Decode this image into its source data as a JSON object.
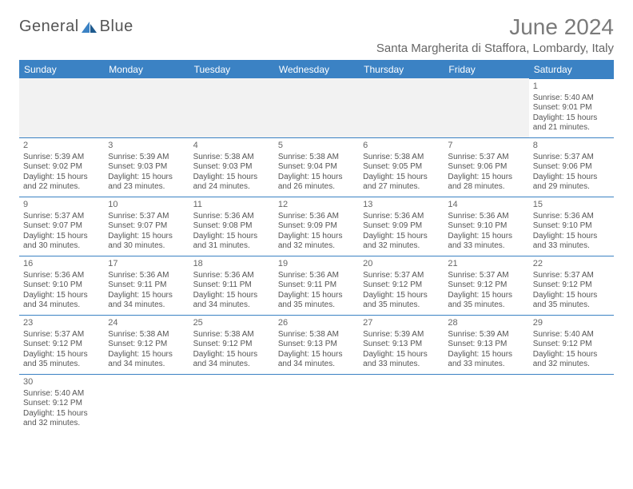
{
  "logo": {
    "word1": "General",
    "word2": "Blue"
  },
  "title": "June 2024",
  "location": "Santa Margherita di Staffora, Lombardy, Italy",
  "colors": {
    "header_bg": "#3b82c4",
    "header_text": "#ffffff",
    "border": "#3b82c4",
    "empty_bg": "#f2f2f2",
    "body_text": "#555555",
    "title_text": "#7a7a7a"
  },
  "day_headers": [
    "Sunday",
    "Monday",
    "Tuesday",
    "Wednesday",
    "Thursday",
    "Friday",
    "Saturday"
  ],
  "weeks": [
    [
      {
        "blank": true
      },
      {
        "blank": true
      },
      {
        "blank": true
      },
      {
        "blank": true
      },
      {
        "blank": true
      },
      {
        "blank": true
      },
      {
        "day": "1",
        "sunrise": "Sunrise: 5:40 AM",
        "sunset": "Sunset: 9:01 PM",
        "daylight1": "Daylight: 15 hours",
        "daylight2": "and 21 minutes."
      }
    ],
    [
      {
        "day": "2",
        "sunrise": "Sunrise: 5:39 AM",
        "sunset": "Sunset: 9:02 PM",
        "daylight1": "Daylight: 15 hours",
        "daylight2": "and 22 minutes."
      },
      {
        "day": "3",
        "sunrise": "Sunrise: 5:39 AM",
        "sunset": "Sunset: 9:03 PM",
        "daylight1": "Daylight: 15 hours",
        "daylight2": "and 23 minutes."
      },
      {
        "day": "4",
        "sunrise": "Sunrise: 5:38 AM",
        "sunset": "Sunset: 9:03 PM",
        "daylight1": "Daylight: 15 hours",
        "daylight2": "and 24 minutes."
      },
      {
        "day": "5",
        "sunrise": "Sunrise: 5:38 AM",
        "sunset": "Sunset: 9:04 PM",
        "daylight1": "Daylight: 15 hours",
        "daylight2": "and 26 minutes."
      },
      {
        "day": "6",
        "sunrise": "Sunrise: 5:38 AM",
        "sunset": "Sunset: 9:05 PM",
        "daylight1": "Daylight: 15 hours",
        "daylight2": "and 27 minutes."
      },
      {
        "day": "7",
        "sunrise": "Sunrise: 5:37 AM",
        "sunset": "Sunset: 9:06 PM",
        "daylight1": "Daylight: 15 hours",
        "daylight2": "and 28 minutes."
      },
      {
        "day": "8",
        "sunrise": "Sunrise: 5:37 AM",
        "sunset": "Sunset: 9:06 PM",
        "daylight1": "Daylight: 15 hours",
        "daylight2": "and 29 minutes."
      }
    ],
    [
      {
        "day": "9",
        "sunrise": "Sunrise: 5:37 AM",
        "sunset": "Sunset: 9:07 PM",
        "daylight1": "Daylight: 15 hours",
        "daylight2": "and 30 minutes."
      },
      {
        "day": "10",
        "sunrise": "Sunrise: 5:37 AM",
        "sunset": "Sunset: 9:07 PM",
        "daylight1": "Daylight: 15 hours",
        "daylight2": "and 30 minutes."
      },
      {
        "day": "11",
        "sunrise": "Sunrise: 5:36 AM",
        "sunset": "Sunset: 9:08 PM",
        "daylight1": "Daylight: 15 hours",
        "daylight2": "and 31 minutes."
      },
      {
        "day": "12",
        "sunrise": "Sunrise: 5:36 AM",
        "sunset": "Sunset: 9:09 PM",
        "daylight1": "Daylight: 15 hours",
        "daylight2": "and 32 minutes."
      },
      {
        "day": "13",
        "sunrise": "Sunrise: 5:36 AM",
        "sunset": "Sunset: 9:09 PM",
        "daylight1": "Daylight: 15 hours",
        "daylight2": "and 32 minutes."
      },
      {
        "day": "14",
        "sunrise": "Sunrise: 5:36 AM",
        "sunset": "Sunset: 9:10 PM",
        "daylight1": "Daylight: 15 hours",
        "daylight2": "and 33 minutes."
      },
      {
        "day": "15",
        "sunrise": "Sunrise: 5:36 AM",
        "sunset": "Sunset: 9:10 PM",
        "daylight1": "Daylight: 15 hours",
        "daylight2": "and 33 minutes."
      }
    ],
    [
      {
        "day": "16",
        "sunrise": "Sunrise: 5:36 AM",
        "sunset": "Sunset: 9:10 PM",
        "daylight1": "Daylight: 15 hours",
        "daylight2": "and 34 minutes."
      },
      {
        "day": "17",
        "sunrise": "Sunrise: 5:36 AM",
        "sunset": "Sunset: 9:11 PM",
        "daylight1": "Daylight: 15 hours",
        "daylight2": "and 34 minutes."
      },
      {
        "day": "18",
        "sunrise": "Sunrise: 5:36 AM",
        "sunset": "Sunset: 9:11 PM",
        "daylight1": "Daylight: 15 hours",
        "daylight2": "and 34 minutes."
      },
      {
        "day": "19",
        "sunrise": "Sunrise: 5:36 AM",
        "sunset": "Sunset: 9:11 PM",
        "daylight1": "Daylight: 15 hours",
        "daylight2": "and 35 minutes."
      },
      {
        "day": "20",
        "sunrise": "Sunrise: 5:37 AM",
        "sunset": "Sunset: 9:12 PM",
        "daylight1": "Daylight: 15 hours",
        "daylight2": "and 35 minutes."
      },
      {
        "day": "21",
        "sunrise": "Sunrise: 5:37 AM",
        "sunset": "Sunset: 9:12 PM",
        "daylight1": "Daylight: 15 hours",
        "daylight2": "and 35 minutes."
      },
      {
        "day": "22",
        "sunrise": "Sunrise: 5:37 AM",
        "sunset": "Sunset: 9:12 PM",
        "daylight1": "Daylight: 15 hours",
        "daylight2": "and 35 minutes."
      }
    ],
    [
      {
        "day": "23",
        "sunrise": "Sunrise: 5:37 AM",
        "sunset": "Sunset: 9:12 PM",
        "daylight1": "Daylight: 15 hours",
        "daylight2": "and 35 minutes."
      },
      {
        "day": "24",
        "sunrise": "Sunrise: 5:38 AM",
        "sunset": "Sunset: 9:12 PM",
        "daylight1": "Daylight: 15 hours",
        "daylight2": "and 34 minutes."
      },
      {
        "day": "25",
        "sunrise": "Sunrise: 5:38 AM",
        "sunset": "Sunset: 9:12 PM",
        "daylight1": "Daylight: 15 hours",
        "daylight2": "and 34 minutes."
      },
      {
        "day": "26",
        "sunrise": "Sunrise: 5:38 AM",
        "sunset": "Sunset: 9:13 PM",
        "daylight1": "Daylight: 15 hours",
        "daylight2": "and 34 minutes."
      },
      {
        "day": "27",
        "sunrise": "Sunrise: 5:39 AM",
        "sunset": "Sunset: 9:13 PM",
        "daylight1": "Daylight: 15 hours",
        "daylight2": "and 33 minutes."
      },
      {
        "day": "28",
        "sunrise": "Sunrise: 5:39 AM",
        "sunset": "Sunset: 9:13 PM",
        "daylight1": "Daylight: 15 hours",
        "daylight2": "and 33 minutes."
      },
      {
        "day": "29",
        "sunrise": "Sunrise: 5:40 AM",
        "sunset": "Sunset: 9:12 PM",
        "daylight1": "Daylight: 15 hours",
        "daylight2": "and 32 minutes."
      }
    ],
    [
      {
        "day": "30",
        "sunrise": "Sunrise: 5:40 AM",
        "sunset": "Sunset: 9:12 PM",
        "daylight1": "Daylight: 15 hours",
        "daylight2": "and 32 minutes."
      },
      {
        "blank": true
      },
      {
        "blank": true
      },
      {
        "blank": true
      },
      {
        "blank": true
      },
      {
        "blank": true
      },
      {
        "blank": true
      }
    ]
  ]
}
